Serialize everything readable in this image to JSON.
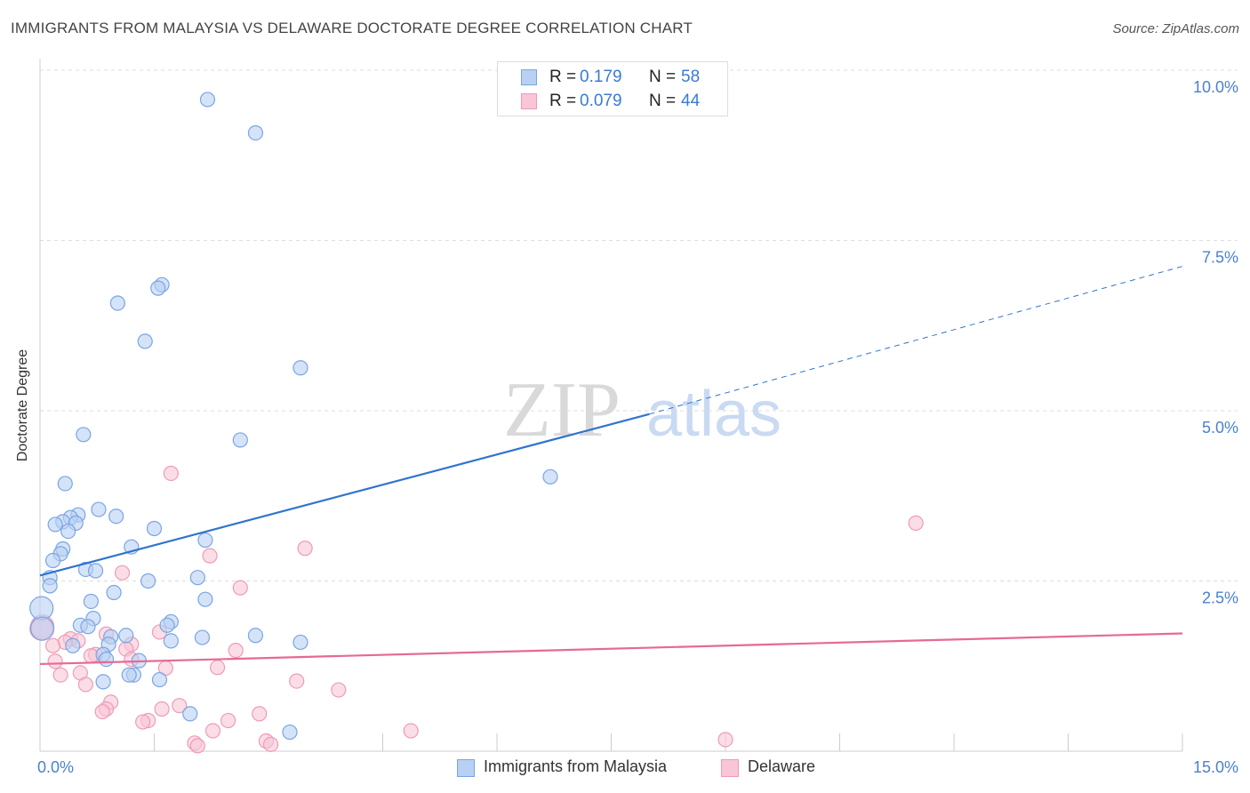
{
  "title": "IMMIGRANTS FROM MALAYSIA VS DELAWARE DOCTORATE DEGREE CORRELATION CHART",
  "source": "Source: ZipAtlas.com",
  "watermark": {
    "zip": "ZIP",
    "atlas": "atlas"
  },
  "colors": {
    "blue_fill": "#b8d0f3",
    "blue_stroke": "#7aa5e3",
    "blue_line": "#2f74cf",
    "pink_fill": "#f8c6d6",
    "pink_stroke": "#ee9bb7",
    "pink_line": "#e56a96",
    "tick_color": "#4a80d0",
    "grid": "#dddddd"
  },
  "legend": {
    "rows": [
      {
        "r_label": "R =",
        "r_value": "0.179",
        "n_label": "N =",
        "n_value": "58"
      },
      {
        "r_label": "R =",
        "r_value": "0.079",
        "n_label": "N =",
        "n_value": "44"
      }
    ]
  },
  "bottom_legend": {
    "series1": "Immigrants from Malaysia",
    "series2": "Delaware"
  },
  "chart_data": {
    "type": "scatter",
    "title": "IMMIGRANTS FROM MALAYSIA VS DELAWARE DOCTORATE DEGREE CORRELATION CHART",
    "xlabel": "",
    "ylabel": "Doctorate Degree",
    "xlim": [
      0,
      15
    ],
    "ylim": [
      0,
      10
    ],
    "x_tick_labels": [
      "0.0%",
      "15.0%"
    ],
    "y_ticks": [
      {
        "value": 2.5,
        "label": "2.5%"
      },
      {
        "value": 5.0,
        "label": "5.0%"
      },
      {
        "value": 7.5,
        "label": "7.5%"
      },
      {
        "value": 10.0,
        "label": "10.0%"
      }
    ],
    "series": [
      {
        "name": "Immigrants from Malaysia",
        "color": "blue",
        "trend": {
          "x0": 0,
          "y0": 2.58,
          "x1": 8.0,
          "y1": 4.95,
          "dash_to_x": 15,
          "dash_to_y": 7.12
        },
        "points": [
          [
            2.2,
            9.57
          ],
          [
            2.83,
            9.08
          ],
          [
            1.02,
            6.58
          ],
          [
            1.6,
            6.85
          ],
          [
            1.55,
            6.8
          ],
          [
            1.38,
            6.02
          ],
          [
            3.42,
            5.63
          ],
          [
            2.63,
            4.57
          ],
          [
            0.57,
            4.65
          ],
          [
            6.7,
            4.03
          ],
          [
            0.33,
            3.93
          ],
          [
            0.77,
            3.55
          ],
          [
            0.5,
            3.47
          ],
          [
            0.4,
            3.43
          ],
          [
            0.3,
            3.37
          ],
          [
            0.47,
            3.35
          ],
          [
            1.0,
            3.45
          ],
          [
            0.2,
            3.33
          ],
          [
            0.37,
            3.23
          ],
          [
            1.5,
            3.27
          ],
          [
            2.17,
            3.1
          ],
          [
            1.2,
            3.0
          ],
          [
            0.3,
            2.97
          ],
          [
            0.27,
            2.9
          ],
          [
            0.17,
            2.8
          ],
          [
            0.6,
            2.67
          ],
          [
            0.73,
            2.65
          ],
          [
            0.13,
            2.55
          ],
          [
            0.13,
            2.43
          ],
          [
            2.07,
            2.55
          ],
          [
            1.42,
            2.5
          ],
          [
            0.97,
            2.33
          ],
          [
            2.17,
            2.23
          ],
          [
            0.67,
            2.2
          ],
          [
            0.02,
            2.1
          ],
          [
            0.7,
            1.95
          ],
          [
            1.72,
            1.9
          ],
          [
            1.67,
            1.85
          ],
          [
            0.53,
            1.85
          ],
          [
            0.63,
            1.83
          ],
          [
            0.03,
            1.8
          ],
          [
            1.13,
            1.7
          ],
          [
            0.93,
            1.68
          ],
          [
            2.83,
            1.7
          ],
          [
            2.13,
            1.67
          ],
          [
            1.72,
            1.62
          ],
          [
            3.42,
            1.6
          ],
          [
            0.43,
            1.55
          ],
          [
            0.9,
            1.57
          ],
          [
            0.83,
            1.42
          ],
          [
            0.87,
            1.35
          ],
          [
            1.3,
            1.33
          ],
          [
            1.23,
            1.12
          ],
          [
            1.17,
            1.12
          ],
          [
            1.57,
            1.05
          ],
          [
            0.83,
            1.02
          ],
          [
            1.97,
            0.55
          ],
          [
            3.28,
            0.28
          ]
        ]
      },
      {
        "name": "Delaware",
        "color": "pink",
        "trend": {
          "x0": 0,
          "y0": 1.28,
          "x1": 15,
          "y1": 1.73
        },
        "points": [
          [
            1.72,
            4.08
          ],
          [
            11.5,
            3.35
          ],
          [
            3.48,
            2.98
          ],
          [
            2.23,
            2.87
          ],
          [
            1.08,
            2.62
          ],
          [
            2.63,
            2.4
          ],
          [
            0.03,
            1.83
          ],
          [
            0.02,
            1.8
          ],
          [
            1.57,
            1.75
          ],
          [
            0.87,
            1.72
          ],
          [
            0.4,
            1.65
          ],
          [
            0.5,
            1.62
          ],
          [
            0.33,
            1.6
          ],
          [
            1.2,
            1.57
          ],
          [
            0.17,
            1.55
          ],
          [
            1.13,
            1.5
          ],
          [
            2.57,
            1.48
          ],
          [
            0.73,
            1.42
          ],
          [
            0.67,
            1.4
          ],
          [
            1.2,
            1.35
          ],
          [
            0.2,
            1.32
          ],
          [
            1.65,
            1.22
          ],
          [
            2.33,
            1.23
          ],
          [
            0.53,
            1.15
          ],
          [
            0.27,
            1.12
          ],
          [
            3.37,
            1.03
          ],
          [
            0.6,
            0.98
          ],
          [
            3.92,
            0.9
          ],
          [
            0.93,
            0.72
          ],
          [
            1.83,
            0.67
          ],
          [
            1.6,
            0.62
          ],
          [
            0.87,
            0.62
          ],
          [
            0.82,
            0.58
          ],
          [
            2.88,
            0.55
          ],
          [
            1.42,
            0.45
          ],
          [
            1.35,
            0.43
          ],
          [
            2.47,
            0.45
          ],
          [
            2.27,
            0.3
          ],
          [
            4.87,
            0.3
          ],
          [
            2.03,
            0.12
          ],
          [
            2.97,
            0.15
          ],
          [
            3.03,
            0.1
          ],
          [
            9.0,
            0.17
          ],
          [
            2.07,
            0.08
          ]
        ]
      }
    ]
  }
}
